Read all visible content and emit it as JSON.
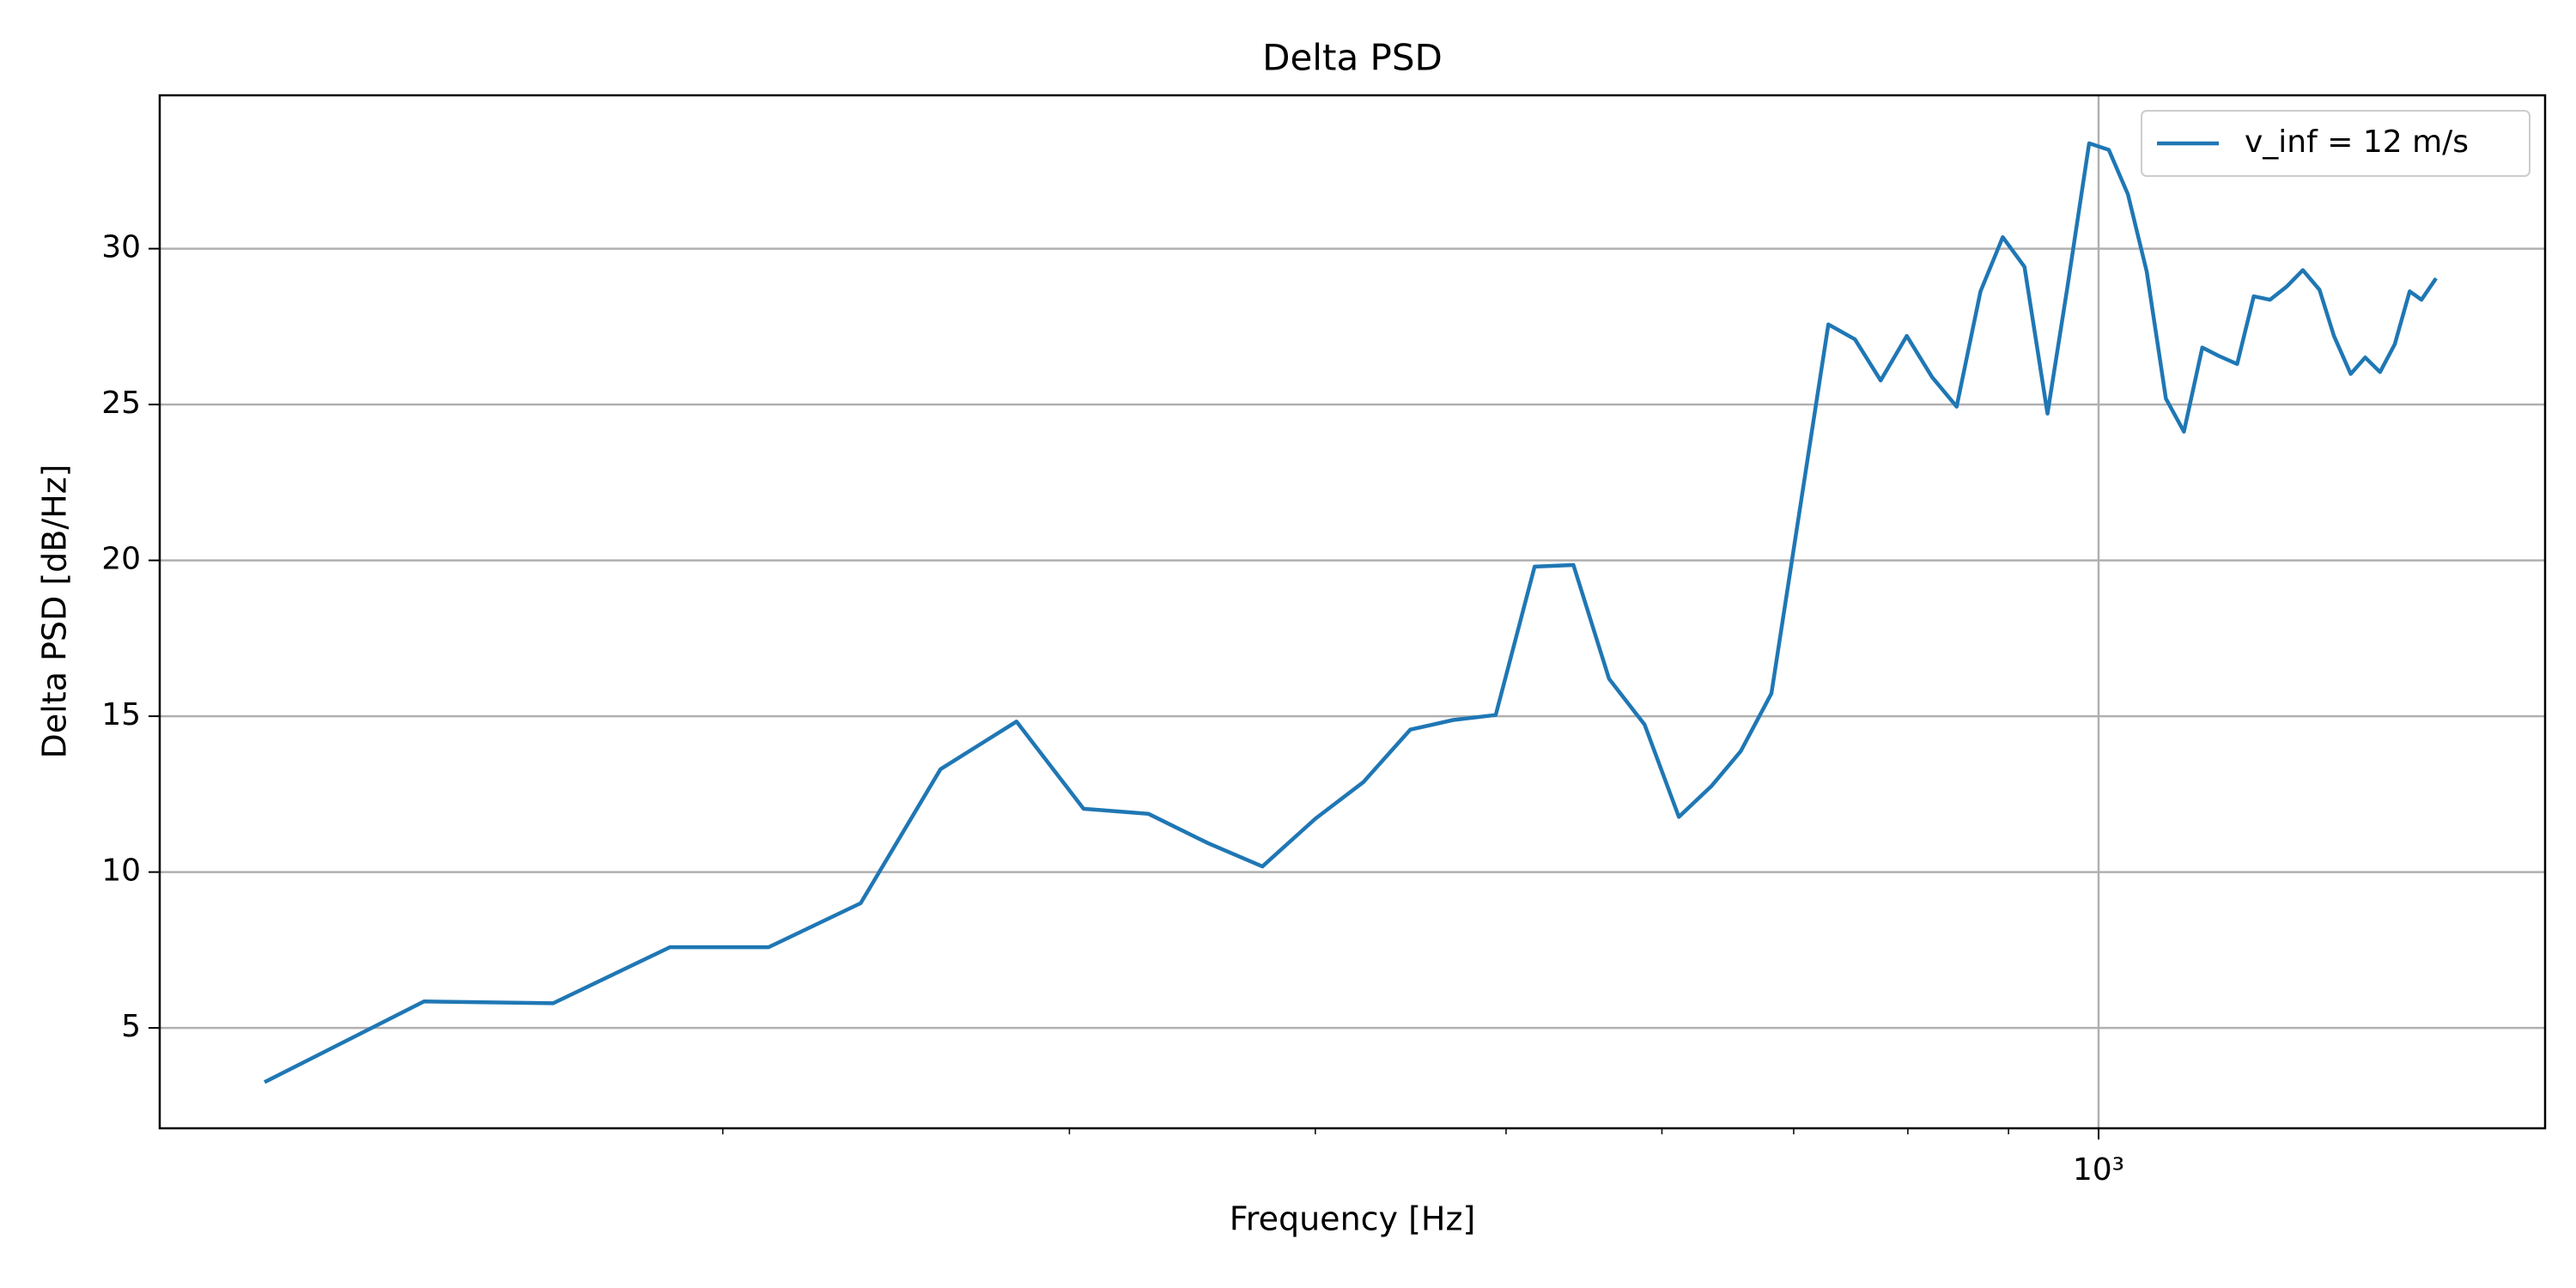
{
  "chart_data": {
    "type": "line",
    "title": "Delta PSD",
    "xlabel": "Frequency [Hz]",
    "ylabel": "Delta PSD [dB/Hz]",
    "xscale": "log",
    "grid": true,
    "legend": "upper right",
    "x": [
      117,
      141,
      164,
      188,
      211,
      235,
      258,
      282,
      305,
      329,
      353,
      376,
      400,
      423,
      447,
      470,
      494,
      517,
      541,
      564,
      588,
      612,
      636,
      658,
      682,
      729,
      752,
      775,
      799,
      823,
      847,
      871,
      894,
      917,
      942,
      964,
      989,
      1012,
      1035,
      1058,
      1082,
      1105,
      1129,
      1151,
      1176,
      1199,
      1222,
      1246,
      1270,
      1295,
      1317,
      1343,
      1366,
      1390,
      1414,
      1439,
      1459,
      1484
    ],
    "series": [
      {
        "name": "v_inf = 12 m/s",
        "color": "#1f77b4",
        "values": [
          3.26,
          5.85,
          5.79,
          7.59,
          7.59,
          9.0,
          13.3,
          14.83,
          12.03,
          11.87,
          10.92,
          10.18,
          11.71,
          12.88,
          14.57,
          14.88,
          15.04,
          19.8,
          19.85,
          16.2,
          14.73,
          11.77,
          12.77,
          13.88,
          15.73,
          27.57,
          27.09,
          25.77,
          27.2,
          25.88,
          24.93,
          28.63,
          30.37,
          29.42,
          24.71,
          28.73,
          33.38,
          33.17,
          31.74,
          29.26,
          25.19,
          24.13,
          26.83,
          26.56,
          26.3,
          28.47,
          28.36,
          28.78,
          29.31,
          28.68,
          27.2,
          25.98,
          26.51,
          26.04,
          26.93,
          28.63,
          28.36,
          29.05
        ]
      }
    ],
    "xlim": [
      103.5,
      1686
    ],
    "xticks": [
      {
        "value": 1000,
        "label": "10³"
      }
    ],
    "xminorticks": [
      200,
      300,
      400,
      500,
      600,
      700,
      800,
      900
    ],
    "ylim": [
      1.78,
      34.92
    ],
    "yticks": [
      5,
      10,
      15,
      20,
      25,
      30
    ]
  }
}
